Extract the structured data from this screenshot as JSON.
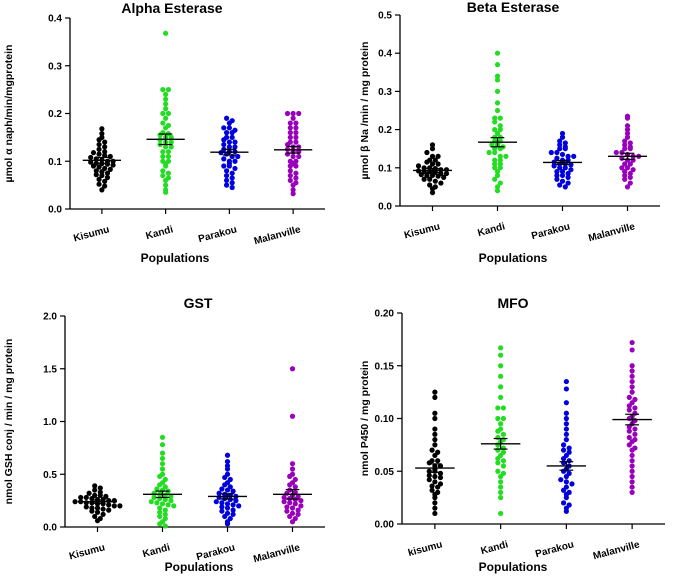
{
  "chart_data": [
    {
      "type": "scatter",
      "title": "Alpha Esterase",
      "ylabel": "µmol α naph/min/mgprotein",
      "xlabel": "Populations",
      "ylim": [
        0,
        0.4
      ],
      "yticks": [
        0.0,
        0.1,
        0.2,
        0.3,
        0.4
      ],
      "ytick_labels": [
        "0.0",
        "0.1",
        "0.2",
        "0.3",
        "0.4"
      ],
      "categories": [
        "Kisumu",
        "Kandi",
        "Parakou",
        "Malanville"
      ],
      "colors": [
        "#000000",
        "#22dd22",
        "#0000dd",
        "#9900bb"
      ],
      "series": [
        {
          "name": "Kisumu",
          "mean": 0.102,
          "sem": 0.006,
          "values": [
            0.168,
            0.158,
            0.15,
            0.145,
            0.14,
            0.135,
            0.13,
            0.125,
            0.12,
            0.118,
            0.115,
            0.112,
            0.11,
            0.108,
            0.105,
            0.103,
            0.1,
            0.1,
            0.098,
            0.096,
            0.095,
            0.094,
            0.092,
            0.09,
            0.088,
            0.085,
            0.083,
            0.08,
            0.078,
            0.075,
            0.072,
            0.07,
            0.066,
            0.062,
            0.058,
            0.052,
            0.048,
            0.04
          ]
        },
        {
          "name": "Kandi",
          "mean": 0.146,
          "sem": 0.011,
          "values": [
            0.368,
            0.25,
            0.25,
            0.24,
            0.23,
            0.22,
            0.21,
            0.2,
            0.2,
            0.19,
            0.18,
            0.175,
            0.17,
            0.16,
            0.158,
            0.155,
            0.15,
            0.15,
            0.145,
            0.14,
            0.14,
            0.135,
            0.13,
            0.13,
            0.12,
            0.12,
            0.11,
            0.11,
            0.1,
            0.1,
            0.095,
            0.09,
            0.08,
            0.075,
            0.07,
            0.065,
            0.06,
            0.05,
            0.04,
            0.035
          ]
        },
        {
          "name": "Parakou",
          "mean": 0.119,
          "sem": 0.006,
          "values": [
            0.19,
            0.185,
            0.18,
            0.17,
            0.17,
            0.165,
            0.16,
            0.16,
            0.15,
            0.15,
            0.145,
            0.14,
            0.14,
            0.135,
            0.13,
            0.13,
            0.125,
            0.12,
            0.12,
            0.118,
            0.115,
            0.11,
            0.11,
            0.105,
            0.1,
            0.1,
            0.095,
            0.09,
            0.09,
            0.085,
            0.08,
            0.075,
            0.07,
            0.065,
            0.06,
            0.055,
            0.05,
            0.045
          ]
        },
        {
          "name": "Malanville",
          "mean": 0.124,
          "sem": 0.007,
          "values": [
            0.2,
            0.2,
            0.2,
            0.19,
            0.18,
            0.18,
            0.17,
            0.17,
            0.16,
            0.16,
            0.15,
            0.15,
            0.14,
            0.14,
            0.135,
            0.13,
            0.13,
            0.125,
            0.12,
            0.12,
            0.115,
            0.11,
            0.11,
            0.1,
            0.1,
            0.095,
            0.09,
            0.09,
            0.08,
            0.075,
            0.07,
            0.065,
            0.06,
            0.055,
            0.05,
            0.04,
            0.032
          ]
        }
      ]
    },
    {
      "type": "scatter",
      "title": "Beta Esterase",
      "ylabel": "µmol β Na /min / mg protein",
      "xlabel": "Populations",
      "ylim": [
        0,
        0.5
      ],
      "yticks": [
        0.0,
        0.1,
        0.2,
        0.3,
        0.4,
        0.5
      ],
      "ytick_labels": [
        "0.0",
        "0.1",
        "0.2",
        "0.3",
        "0.4",
        "0.5"
      ],
      "categories": [
        "Kisumu",
        "Kandi",
        "Parakou",
        "Malanville"
      ],
      "colors": [
        "#000000",
        "#22dd22",
        "#0000dd",
        "#9900bb"
      ],
      "series": [
        {
          "name": "Kisumu",
          "mean": 0.093,
          "sem": 0.005,
          "values": [
            0.16,
            0.15,
            0.14,
            0.13,
            0.13,
            0.12,
            0.12,
            0.115,
            0.11,
            0.11,
            0.105,
            0.1,
            0.1,
            0.098,
            0.095,
            0.095,
            0.092,
            0.09,
            0.09,
            0.088,
            0.085,
            0.085,
            0.082,
            0.08,
            0.08,
            0.078,
            0.075,
            0.07,
            0.07,
            0.065,
            0.06,
            0.055,
            0.05,
            0.045,
            0.035
          ]
        },
        {
          "name": "Kandi",
          "mean": 0.167,
          "sem": 0.012,
          "values": [
            0.4,
            0.37,
            0.34,
            0.33,
            0.3,
            0.27,
            0.25,
            0.23,
            0.23,
            0.22,
            0.21,
            0.2,
            0.2,
            0.19,
            0.18,
            0.18,
            0.17,
            0.17,
            0.16,
            0.16,
            0.155,
            0.15,
            0.15,
            0.14,
            0.14,
            0.13,
            0.13,
            0.12,
            0.12,
            0.11,
            0.11,
            0.1,
            0.1,
            0.09,
            0.08,
            0.07,
            0.06,
            0.05,
            0.04
          ]
        },
        {
          "name": "Parakou",
          "mean": 0.114,
          "sem": 0.005,
          "values": [
            0.19,
            0.18,
            0.17,
            0.165,
            0.16,
            0.155,
            0.15,
            0.15,
            0.14,
            0.14,
            0.135,
            0.13,
            0.13,
            0.125,
            0.12,
            0.12,
            0.115,
            0.11,
            0.11,
            0.108,
            0.105,
            0.1,
            0.1,
            0.095,
            0.09,
            0.09,
            0.085,
            0.08,
            0.08,
            0.075,
            0.07,
            0.065,
            0.06,
            0.055,
            0.05
          ]
        },
        {
          "name": "Malanville",
          "mean": 0.13,
          "sem": 0.008,
          "values": [
            0.235,
            0.23,
            0.21,
            0.2,
            0.19,
            0.18,
            0.17,
            0.165,
            0.16,
            0.155,
            0.15,
            0.15,
            0.14,
            0.14,
            0.135,
            0.13,
            0.13,
            0.125,
            0.12,
            0.12,
            0.11,
            0.11,
            0.1,
            0.1,
            0.095,
            0.09,
            0.085,
            0.08,
            0.075,
            0.07,
            0.06,
            0.05
          ]
        }
      ]
    },
    {
      "type": "scatter",
      "title": "GST",
      "ylabel": "nmol GSH conj / min / mg protein",
      "xlabel": "Populations",
      "ylim": [
        0,
        2.0
      ],
      "yticks": [
        0.0,
        0.5,
        1.0,
        1.5,
        2.0
      ],
      "ytick_labels": [
        "0.0",
        "0.5",
        "1.0",
        "1.5",
        "2.0"
      ],
      "categories": [
        "Kisumu",
        "Kandi",
        "Parakou",
        "Malanville"
      ],
      "colors": [
        "#000000",
        "#22dd22",
        "#0000dd",
        "#9900bb"
      ],
      "series": [
        {
          "name": "Kisumu",
          "mean": 0.24,
          "sem": 0.015,
          "values": [
            0.39,
            0.37,
            0.35,
            0.33,
            0.32,
            0.3,
            0.3,
            0.29,
            0.28,
            0.28,
            0.27,
            0.26,
            0.26,
            0.25,
            0.25,
            0.24,
            0.24,
            0.23,
            0.23,
            0.22,
            0.22,
            0.21,
            0.2,
            0.2,
            0.19,
            0.18,
            0.18,
            0.17,
            0.16,
            0.15,
            0.14,
            0.12,
            0.1,
            0.08,
            0.06
          ]
        },
        {
          "name": "Kandi",
          "mean": 0.31,
          "sem": 0.03,
          "values": [
            0.85,
            0.78,
            0.7,
            0.65,
            0.6,
            0.55,
            0.5,
            0.48,
            0.45,
            0.42,
            0.4,
            0.38,
            0.36,
            0.35,
            0.34,
            0.32,
            0.31,
            0.3,
            0.29,
            0.28,
            0.27,
            0.26,
            0.25,
            0.24,
            0.23,
            0.22,
            0.21,
            0.2,
            0.18,
            0.16,
            0.14,
            0.12,
            0.1,
            0.08,
            0.05,
            0.03,
            0.01
          ]
        },
        {
          "name": "Parakou",
          "mean": 0.29,
          "sem": 0.025,
          "values": [
            0.68,
            0.62,
            0.58,
            0.55,
            0.5,
            0.47,
            0.45,
            0.42,
            0.4,
            0.38,
            0.36,
            0.35,
            0.34,
            0.32,
            0.31,
            0.3,
            0.29,
            0.28,
            0.27,
            0.26,
            0.25,
            0.24,
            0.23,
            0.22,
            0.21,
            0.2,
            0.19,
            0.18,
            0.16,
            0.15,
            0.13,
            0.12,
            0.1,
            0.08,
            0.05,
            0.03
          ]
        },
        {
          "name": "Malanville",
          "mean": 0.31,
          "sem": 0.045,
          "values": [
            1.5,
            1.05,
            0.6,
            0.55,
            0.5,
            0.48,
            0.45,
            0.42,
            0.4,
            0.38,
            0.35,
            0.33,
            0.32,
            0.3,
            0.29,
            0.28,
            0.27,
            0.26,
            0.25,
            0.24,
            0.23,
            0.22,
            0.2,
            0.19,
            0.18,
            0.16,
            0.15,
            0.13,
            0.12,
            0.1,
            0.08,
            0.05
          ]
        }
      ]
    },
    {
      "type": "scatter",
      "title": "MFO",
      "ylabel": "nmol P450 / mg protein",
      "xlabel": "Populations",
      "ylim": [
        0,
        0.2
      ],
      "yticks": [
        0.0,
        0.05,
        0.1,
        0.15,
        0.2
      ],
      "ytick_labels": [
        "0.00",
        "0.05",
        "0.10",
        "0.15",
        "0.20"
      ],
      "categories": [
        "kisumu",
        "Kandi",
        "Parakou",
        "Malanville"
      ],
      "colors": [
        "#000000",
        "#22dd22",
        "#0000dd",
        "#9900bb"
      ],
      "series": [
        {
          "name": "kisumu",
          "mean": 0.053,
          "sem": 0.004,
          "values": [
            0.125,
            0.12,
            0.105,
            0.1,
            0.09,
            0.085,
            0.08,
            0.075,
            0.07,
            0.068,
            0.065,
            0.06,
            0.06,
            0.058,
            0.055,
            0.055,
            0.052,
            0.05,
            0.05,
            0.048,
            0.046,
            0.045,
            0.044,
            0.042,
            0.04,
            0.038,
            0.036,
            0.035,
            0.032,
            0.03,
            0.028,
            0.025,
            0.02,
            0.015,
            0.01
          ]
        },
        {
          "name": "Kandi",
          "mean": 0.076,
          "sem": 0.005,
          "values": [
            0.167,
            0.16,
            0.15,
            0.14,
            0.13,
            0.12,
            0.11,
            0.11,
            0.1,
            0.1,
            0.095,
            0.09,
            0.088,
            0.085,
            0.082,
            0.08,
            0.078,
            0.075,
            0.072,
            0.07,
            0.068,
            0.065,
            0.062,
            0.06,
            0.058,
            0.055,
            0.05,
            0.048,
            0.045,
            0.04,
            0.035,
            0.03,
            0.025,
            0.01
          ]
        },
        {
          "name": "Parakou",
          "mean": 0.055,
          "sem": 0.004,
          "values": [
            0.135,
            0.128,
            0.115,
            0.105,
            0.1,
            0.095,
            0.09,
            0.085,
            0.08,
            0.075,
            0.072,
            0.07,
            0.068,
            0.065,
            0.062,
            0.06,
            0.058,
            0.055,
            0.052,
            0.05,
            0.048,
            0.045,
            0.042,
            0.04,
            0.038,
            0.035,
            0.032,
            0.03,
            0.028,
            0.025,
            0.02,
            0.018,
            0.015,
            0.012
          ]
        },
        {
          "name": "Malanville",
          "mean": 0.099,
          "sem": 0.005,
          "values": [
            0.172,
            0.165,
            0.15,
            0.145,
            0.14,
            0.135,
            0.13,
            0.125,
            0.12,
            0.118,
            0.115,
            0.112,
            0.11,
            0.108,
            0.105,
            0.102,
            0.1,
            0.098,
            0.095,
            0.092,
            0.09,
            0.088,
            0.085,
            0.082,
            0.08,
            0.078,
            0.075,
            0.072,
            0.07,
            0.065,
            0.06,
            0.055,
            0.05,
            0.045,
            0.04,
            0.035,
            0.03
          ]
        }
      ]
    }
  ]
}
